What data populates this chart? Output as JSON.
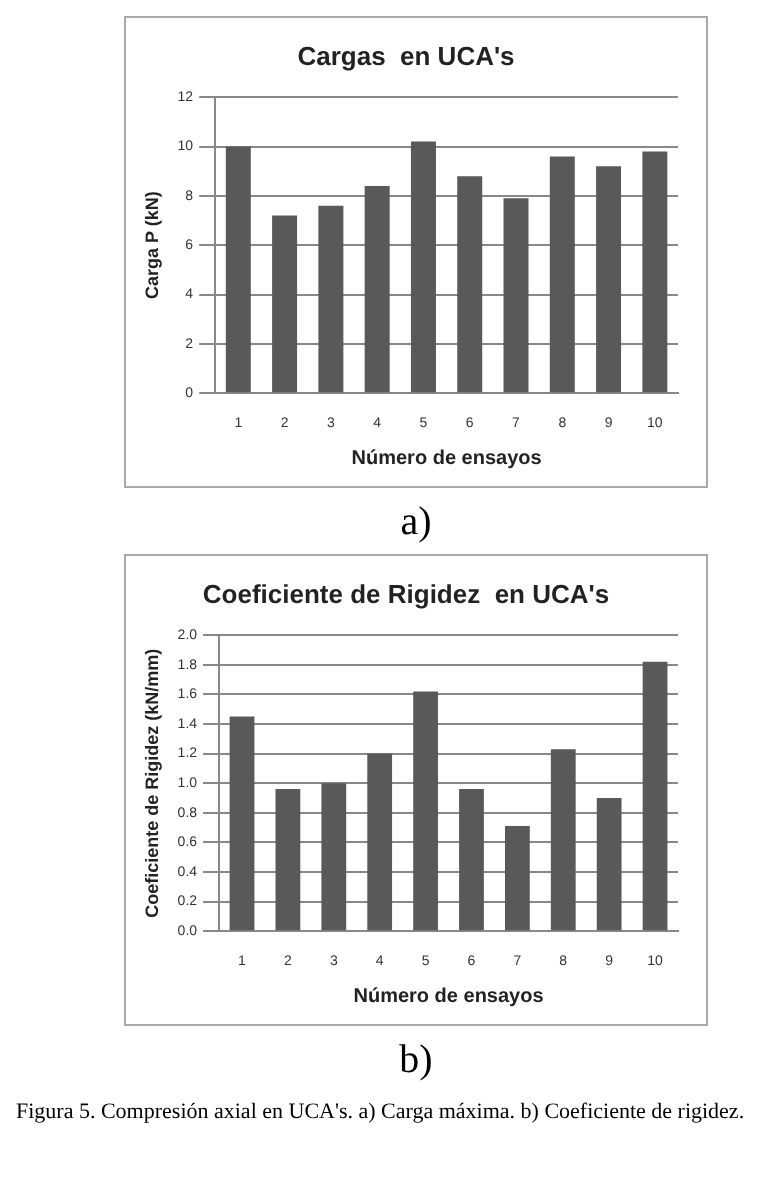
{
  "chart_data": [
    {
      "type": "bar",
      "title": "Cargas  en UCA's",
      "xlabel": "Número de ensayos",
      "ylabel": "Carga P (kN)",
      "categories": [
        "1",
        "2",
        "3",
        "4",
        "5",
        "6",
        "7",
        "8",
        "9",
        "10"
      ],
      "values": [
        10.0,
        7.2,
        7.6,
        8.4,
        10.2,
        8.8,
        7.9,
        9.6,
        9.2,
        9.8
      ],
      "color": "#595959",
      "ylim": [
        0,
        12
      ],
      "yticks": [
        0,
        2,
        4,
        6,
        8,
        10,
        12
      ],
      "grid": "y",
      "legend": false,
      "annotations": [
        "a)"
      ]
    },
    {
      "type": "bar",
      "title": "Coeficiente de Rigidez  en UCA's",
      "xlabel": "Número de ensayos",
      "ylabel": "Coeficiente de Rigidez (kN/mm)",
      "categories": [
        "1",
        "2",
        "3",
        "4",
        "5",
        "6",
        "7",
        "8",
        "9",
        "10"
      ],
      "values": [
        1.45,
        0.96,
        1.0,
        1.2,
        1.62,
        0.96,
        0.71,
        1.23,
        0.9,
        1.82
      ],
      "color": "#595959",
      "ylim": [
        0,
        2
      ],
      "yticks": [
        {
          "value": 0,
          "label": "0.0"
        },
        {
          "value": 0.2,
          "label": "0.2"
        },
        {
          "value": 0.4,
          "label": "0.4"
        },
        {
          "value": 0.6,
          "label": "0.6"
        },
        {
          "value": 0.8,
          "label": "0.8"
        },
        {
          "value": 1,
          "label": "1.0"
        },
        {
          "value": 1.2,
          "label": "1.2"
        },
        {
          "value": 1.4,
          "label": "1.4"
        },
        {
          "value": 1.6,
          "label": "1.6"
        },
        {
          "value": 1.8,
          "label": "1.8"
        },
        {
          "value": 2,
          "label": "2.0"
        }
      ],
      "grid": "y",
      "legend": false,
      "annotations": [
        "b)",
        "Figura 5. Compresión axial en UCA's. a) Carga máxima. b) Coeficiente de rigidez."
      ]
    }
  ]
}
